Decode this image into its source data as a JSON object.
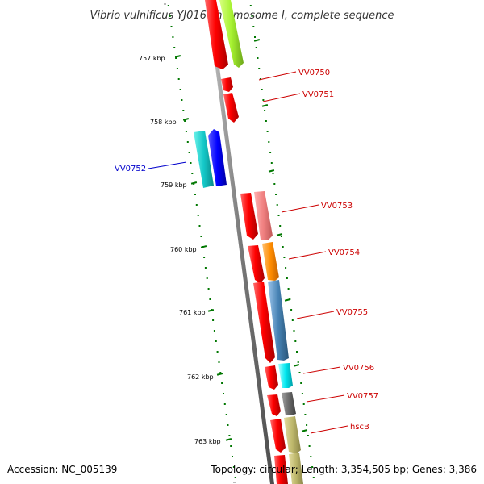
{
  "title": "Vibrio vulnificus YJ016 chromosome I, complete sequence",
  "footer": {
    "accession": "Accession: NC_005139",
    "topology": "Topology: circular; Length: 3,354,505 bp; Genes: 3,386"
  },
  "kbp_labels": [
    "757 kbp",
    "758 kbp",
    "759 kbp",
    "760 kbp",
    "761 kbp",
    "762 kbp",
    "763 kbp"
  ],
  "genes": [
    {
      "label": "VV0750",
      "color": "#cc0000"
    },
    {
      "label": "VV0751",
      "color": "#cc0000"
    },
    {
      "label": "VV0752",
      "color": "#0000cc"
    },
    {
      "label": "VV0753",
      "color": "#cc0000"
    },
    {
      "label": "VV0754",
      "color": "#cc0000"
    },
    {
      "label": "VV0755",
      "color": "#cc0000"
    },
    {
      "label": "VV0756",
      "color": "#cc0000"
    },
    {
      "label": "VV0757",
      "color": "#cc0000"
    },
    {
      "label": "hscB",
      "color": "#cc0000"
    }
  ],
  "colors": {
    "backbone": "#888888",
    "gene_red": "#ff0000",
    "tick_green": "#007700"
  }
}
